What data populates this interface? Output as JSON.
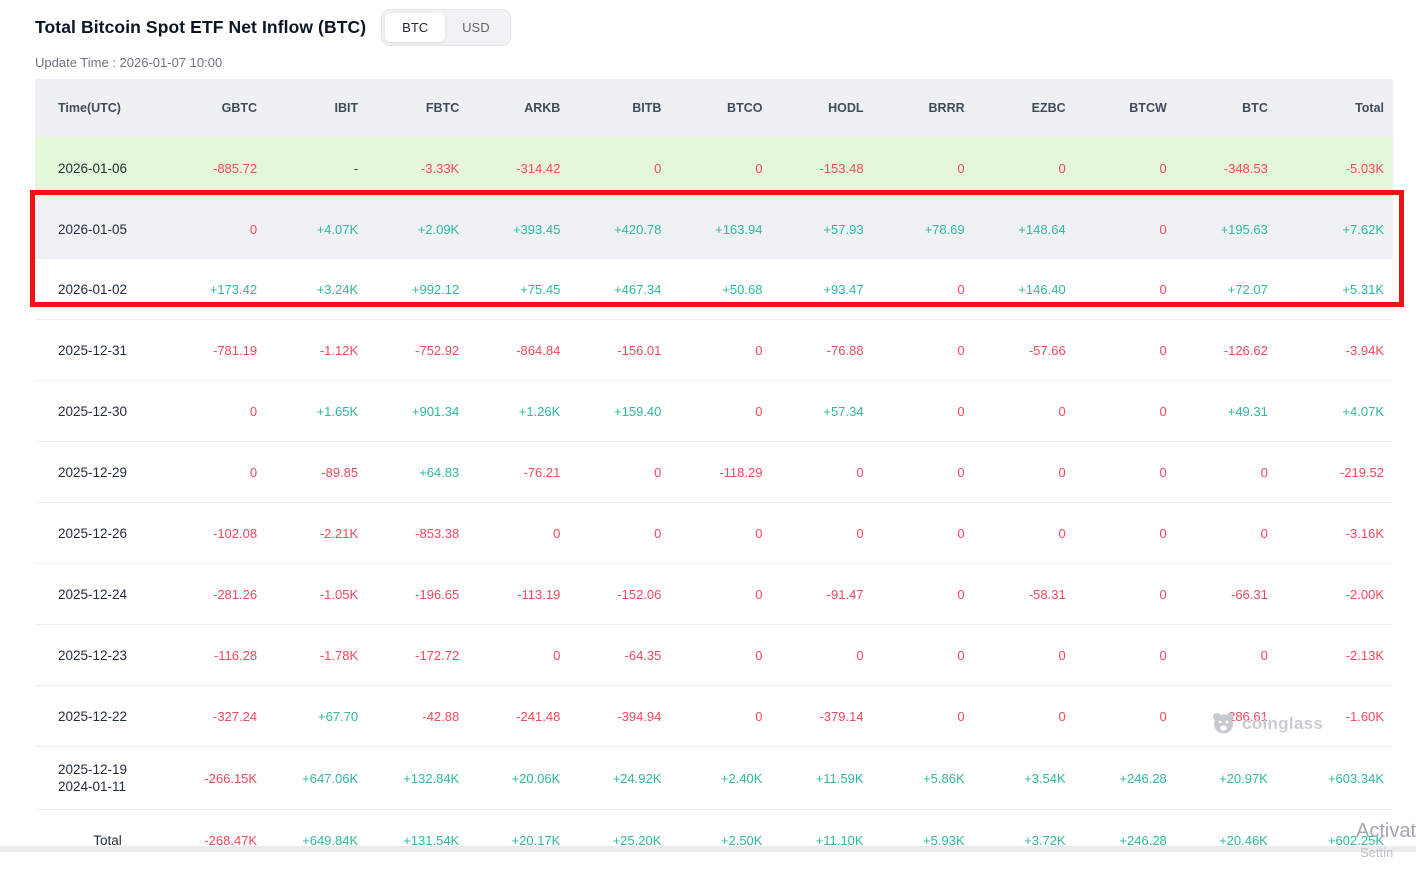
{
  "page": {
    "title": "Total Bitcoin Spot ETF Net Inflow (BTC)",
    "update_time": "Update Time : 2026-01-07 10:00",
    "toggle": {
      "options": [
        "BTC",
        "USD"
      ],
      "active": "BTC"
    }
  },
  "colors": {
    "positive": "#2eb9a0",
    "negative": "#f5475d",
    "neutral": "#2b3440",
    "annotation_box": "#ec1313",
    "highlight_row_bg": "#e4f8d9",
    "header_bg": "#eef0f3"
  },
  "table": {
    "columns": [
      "Time(UTC)",
      "GBTC",
      "IBIT",
      "FBTC",
      "ARKB",
      "BITB",
      "BTCO",
      "HODL",
      "BRRR",
      "EZBC",
      "BTCW",
      "BTC",
      "Total"
    ],
    "rows": [
      {
        "dates": [
          "2026-01-06"
        ],
        "style": "green",
        "values": [
          "-885.72",
          "-",
          "-3.33K",
          "-314.42",
          "0",
          "0",
          "-153.48",
          "0",
          "0",
          "0",
          "-348.53",
          "-5.03K"
        ]
      },
      {
        "dates": [
          "2026-01-05"
        ],
        "style": "gray",
        "values": [
          "0",
          "+4.07K",
          "+2.09K",
          "+393.45",
          "+420.78",
          "+163.94",
          "+57.93",
          "+78.69",
          "+148.64",
          "0",
          "+195.63",
          "+7.62K"
        ]
      },
      {
        "dates": [
          "2026-01-02"
        ],
        "style": "",
        "values": [
          "+173.42",
          "+3.24K",
          "+992.12",
          "+75.45",
          "+467.34",
          "+50.68",
          "+93.47",
          "0",
          "+146.40",
          "0",
          "+72.07",
          "+5.31K"
        ]
      },
      {
        "dates": [
          "2025-12-31"
        ],
        "style": "sep",
        "values": [
          "-781.19",
          "-1.12K",
          "-752.92",
          "-864.84",
          "-156.01",
          "0",
          "-76.88",
          "0",
          "-57.66",
          "0",
          "-126.62",
          "-3.94K"
        ]
      },
      {
        "dates": [
          "2025-12-30"
        ],
        "style": "sep",
        "values": [
          "0",
          "+1.65K",
          "+901.34",
          "+1.26K",
          "+159.40",
          "0",
          "+57.34",
          "0",
          "0",
          "0",
          "+49.31",
          "+4.07K"
        ]
      },
      {
        "dates": [
          "2025-12-29"
        ],
        "style": "sep",
        "values": [
          "0",
          "-89.85",
          "+64.83",
          "-76.21",
          "0",
          "-118.29",
          "0",
          "0",
          "0",
          "0",
          "0",
          "-219.52"
        ]
      },
      {
        "dates": [
          "2025-12-26"
        ],
        "style": "sep",
        "values": [
          "-102.08",
          "-2.21K",
          "-853.38",
          "0",
          "0",
          "0",
          "0",
          "0",
          "0",
          "0",
          "0",
          "-3.16K"
        ]
      },
      {
        "dates": [
          "2025-12-24"
        ],
        "style": "sep",
        "values": [
          "-281.26",
          "-1.05K",
          "-196.65",
          "-113.19",
          "-152.06",
          "0",
          "-91.47",
          "0",
          "-58.31",
          "0",
          "-66.31",
          "-2.00K"
        ]
      },
      {
        "dates": [
          "2025-12-23"
        ],
        "style": "sep",
        "values": [
          "-116.28",
          "-1.78K",
          "-172.72",
          "0",
          "-64.35",
          "0",
          "0",
          "0",
          "0",
          "0",
          "0",
          "-2.13K"
        ]
      },
      {
        "dates": [
          "2025-12-22"
        ],
        "style": "sep",
        "values": [
          "-327.24",
          "+67.70",
          "-42.88",
          "-241.48",
          "-394.94",
          "0",
          "-379.14",
          "0",
          "0",
          "0",
          "-286.61",
          "-1.60K"
        ]
      },
      {
        "dates": [
          "2025-12-19",
          "2024-01-11"
        ],
        "style": "sep twoline",
        "values": [
          "-266.15K",
          "+647.06K",
          "+132.84K",
          "+20.06K",
          "+24.92K",
          "+2.40K",
          "+11.59K",
          "+5.86K",
          "+3.54K",
          "+246.28",
          "+20.97K",
          "+603.34K"
        ]
      },
      {
        "label": "Total",
        "style": "sep total",
        "values": [
          "-268.47K",
          "+649.84K",
          "+131.54K",
          "+20.17K",
          "+25.20K",
          "+2.50K",
          "+11.10K",
          "+5.93K",
          "+3.72K",
          "+246.28",
          "+20.46K",
          "+602.25K"
        ]
      }
    ]
  },
  "watermark": {
    "label": "coinglass"
  },
  "os_watermark": {
    "line1": "Activat",
    "line2": "Settin"
  }
}
